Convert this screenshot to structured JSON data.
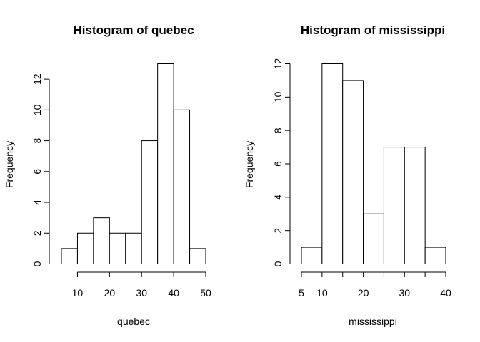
{
  "chart_data": [
    {
      "type": "bar",
      "title": "Histogram of quebec",
      "xlabel": "quebec",
      "ylabel": "Frequency",
      "bins": [
        [
          5,
          10
        ],
        [
          10,
          15
        ],
        [
          15,
          20
        ],
        [
          20,
          25
        ],
        [
          25,
          30
        ],
        [
          30,
          35
        ],
        [
          35,
          40
        ],
        [
          40,
          45
        ],
        [
          45,
          50
        ]
      ],
      "values": [
        1,
        2,
        3,
        2,
        2,
        8,
        13,
        10,
        1
      ],
      "xlim": [
        5,
        50
      ],
      "ylim": [
        0,
        13
      ],
      "x_ticks": [
        10,
        20,
        30,
        40,
        50
      ],
      "x_tick_labels": [
        "10",
        "20",
        "30",
        "40",
        "50"
      ],
      "y_ticks": [
        0,
        2,
        4,
        6,
        8,
        10,
        12
      ],
      "y_tick_labels": [
        "0",
        "2",
        "4",
        "6",
        "8",
        "10",
        "12"
      ],
      "grid": false
    },
    {
      "type": "bar",
      "title": "Histogram of mississippi",
      "xlabel": "mississippi",
      "ylabel": "Frequency",
      "bins": [
        [
          5,
          10
        ],
        [
          10,
          15
        ],
        [
          15,
          20
        ],
        [
          20,
          25
        ],
        [
          25,
          30
        ],
        [
          30,
          35
        ],
        [
          35,
          40
        ]
      ],
      "values": [
        1,
        12,
        11,
        3,
        7,
        7,
        1
      ],
      "xlim": [
        5,
        40
      ],
      "ylim": [
        0,
        12
      ],
      "x_ticks": [
        5,
        10,
        15,
        20,
        25,
        30,
        35,
        40
      ],
      "x_tick_labels": [
        "5",
        "10",
        "",
        "20",
        "",
        "30",
        "",
        "40"
      ],
      "y_ticks": [
        0,
        2,
        4,
        6,
        8,
        10,
        12
      ],
      "y_tick_labels": [
        "0",
        "2",
        "4",
        "6",
        "8",
        "10",
        "12"
      ],
      "grid": false
    }
  ]
}
